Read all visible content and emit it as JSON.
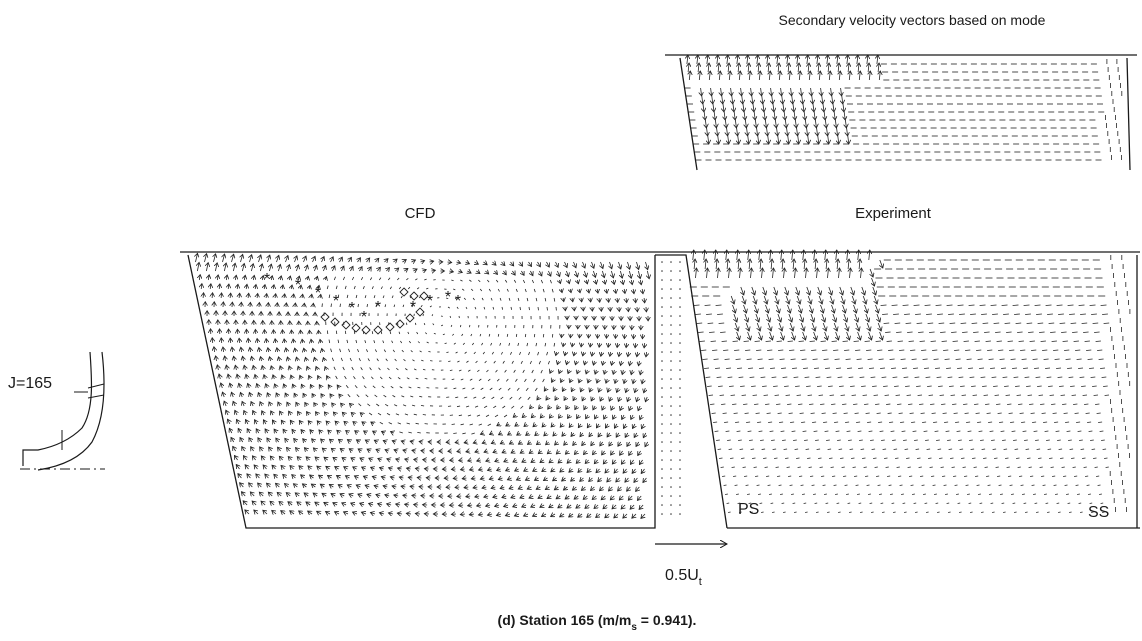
{
  "figure": {
    "top_panel_title": "Secondary velocity vectors based on mode",
    "cfd_title": "CFD",
    "experiment_title": "Experiment",
    "station_label": "J=165",
    "ps_label": "PS",
    "ss_label": "SS",
    "scale_label": "0.5U",
    "scale_subscript": "t",
    "caption_prefix": "(d) Station 165 (m/m",
    "caption_subscript": "s",
    "caption_suffix": " = 0.941)."
  }
}
